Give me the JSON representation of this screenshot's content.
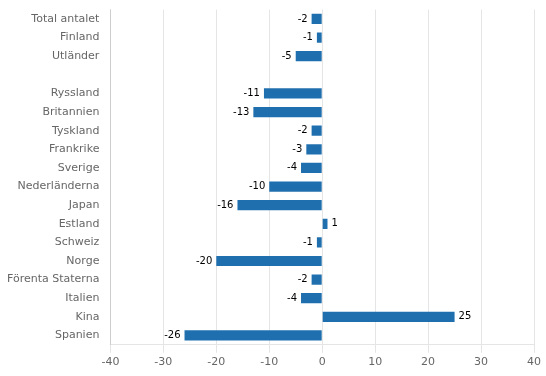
{
  "chart_data": {
    "type": "bar",
    "orientation": "horizontal",
    "categories": [
      "Total antalet",
      "Finland",
      "Utländer",
      null,
      "Ryssland",
      "Britannien",
      "Tyskland",
      "Frankrike",
      "Sverige",
      "Nederländerna",
      "Japan",
      "Estland",
      "Schweiz",
      "Norge",
      "Förenta Staterna",
      "Italien",
      "Kina",
      "Spanien"
    ],
    "values": [
      -2,
      -1,
      -5,
      null,
      -11,
      -13,
      -2,
      -3,
      -4,
      -10,
      -16,
      1,
      -1,
      -20,
      -2,
      -4,
      25,
      -26
    ],
    "color": "#1F6FAF",
    "xlim": [
      -40,
      40
    ],
    "xticks": [
      -40,
      -30,
      -20,
      -10,
      0,
      10,
      20,
      30,
      40
    ],
    "grid": true,
    "data_labels": true
  }
}
